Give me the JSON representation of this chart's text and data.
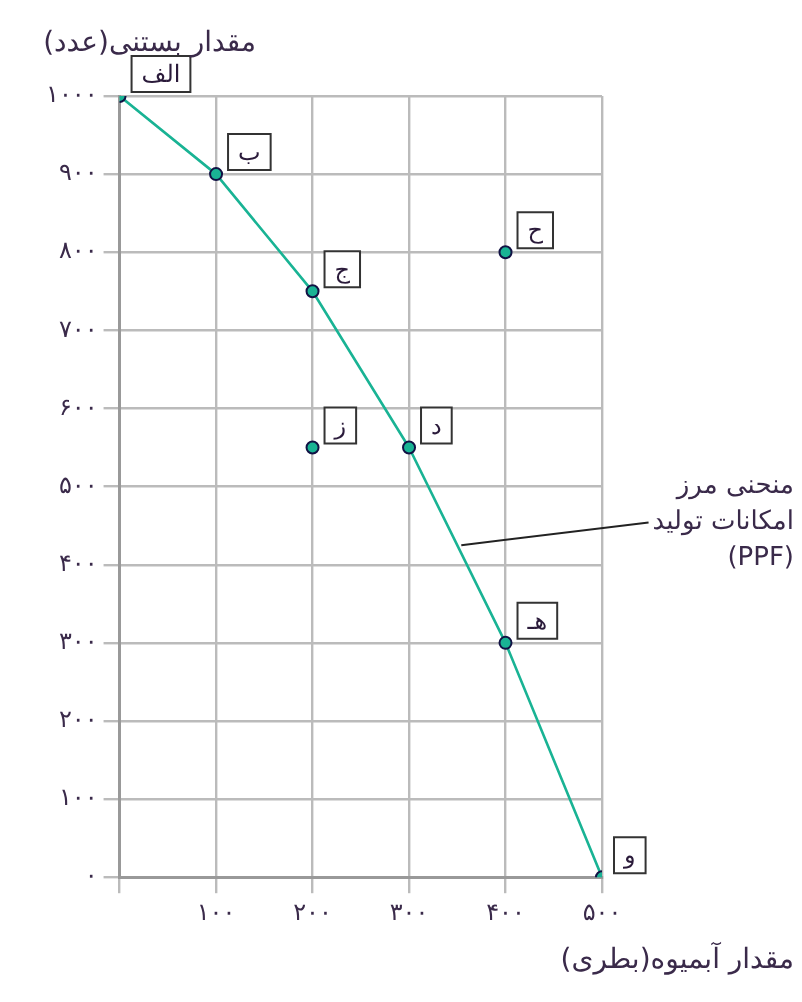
{
  "chart_data": {
    "type": "line",
    "xlabel": "مقدار آبمیوه(بطری)",
    "ylabel": "مقدار بستنی(عدد)",
    "xlim": [
      0,
      500
    ],
    "ylim": [
      0,
      1000
    ],
    "xticks": [
      {
        "value": 0,
        "label": null
      },
      {
        "value": 100,
        "label": "۱۰۰"
      },
      {
        "value": 200,
        "label": "۲۰۰"
      },
      {
        "value": 300,
        "label": "۳۰۰"
      },
      {
        "value": 400,
        "label": "۴۰۰"
      },
      {
        "value": 500,
        "label": "۵۰۰"
      }
    ],
    "yticks": [
      {
        "value": 0,
        "label": "۰"
      },
      {
        "value": 100,
        "label": "۱۰۰"
      },
      {
        "value": 200,
        "label": "۲۰۰"
      },
      {
        "value": 300,
        "label": "۳۰۰"
      },
      {
        "value": 400,
        "label": "۴۰۰"
      },
      {
        "value": 500,
        "label": "۵۰۰"
      },
      {
        "value": 600,
        "label": "۶۰۰"
      },
      {
        "value": 700,
        "label": "۷۰۰"
      },
      {
        "value": 800,
        "label": "۸۰۰"
      },
      {
        "value": 900,
        "label": "۹۰۰"
      },
      {
        "value": 1000,
        "label": "۱۰۰۰"
      }
    ],
    "grid": true,
    "marker": "circle",
    "series": [
      {
        "type": "line",
        "color": "#19b394",
        "x": [
          0,
          100,
          200,
          300,
          400,
          500
        ],
        "values": [
          1000,
          900,
          750,
          550,
          300,
          0
        ],
        "value_labels": [
          "الف",
          "ب",
          "ج",
          "د",
          "هـ",
          "و"
        ]
      },
      {
        "type": "scatter",
        "color": "#19b394",
        "x": [
          400,
          200
        ],
        "values": [
          800,
          550
        ],
        "value_labels": [
          "ح",
          "ز"
        ]
      }
    ],
    "annotations": [
      {
        "text": "منحنی مرز امکانات تولید (PPF)",
        "x": 350,
        "y": 425
      }
    ]
  }
}
